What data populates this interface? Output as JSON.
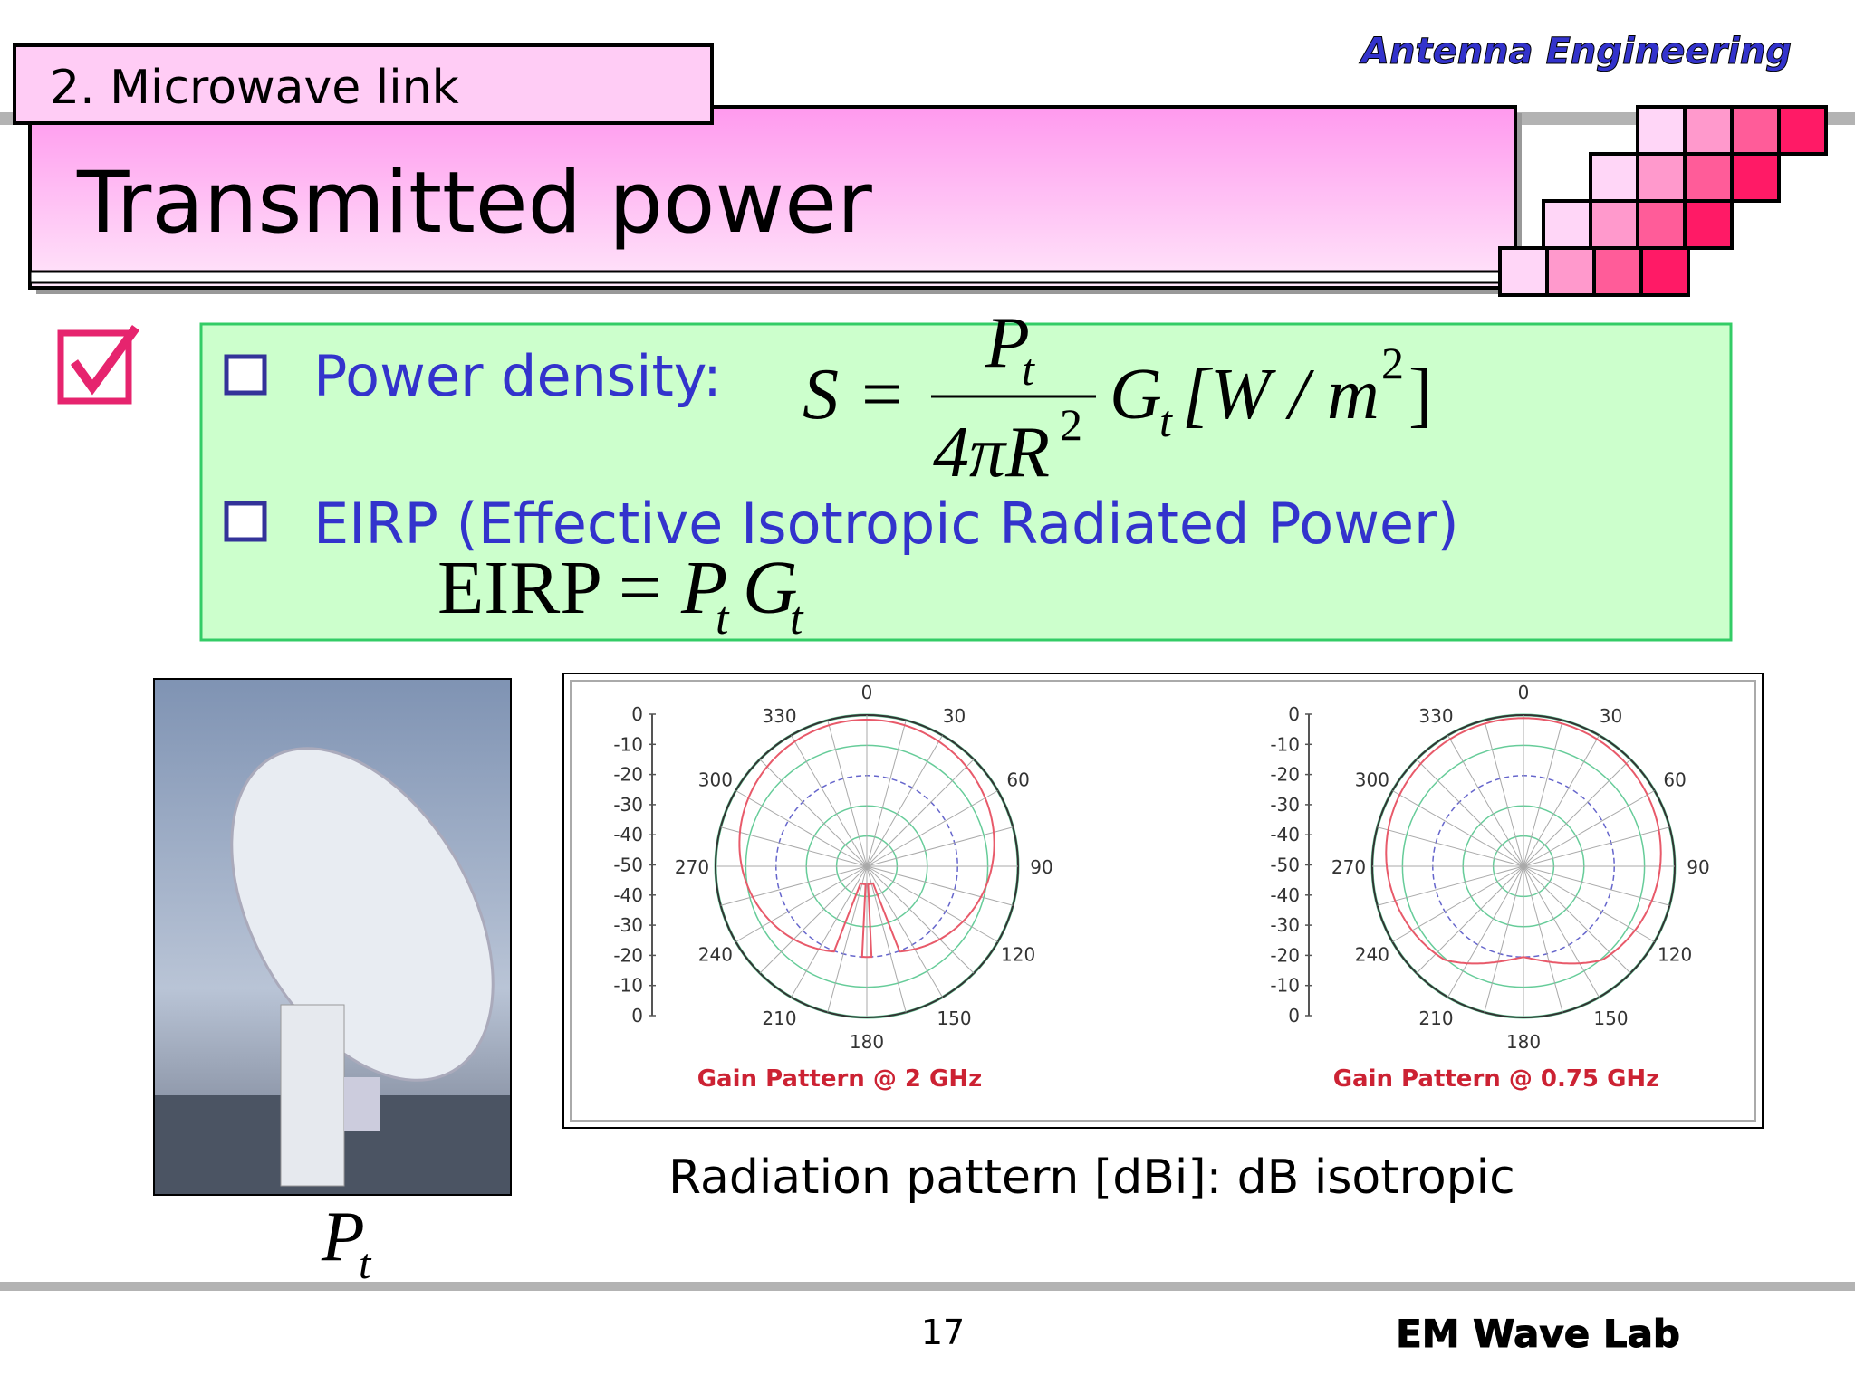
{
  "header": {
    "section": "2. Microwave link",
    "title": "Transmitted power",
    "brand": "Antenna Engineering"
  },
  "bullets": [
    {
      "text": "Power density:"
    },
    {
      "text": "EIRP (Effective Isotropic Radiated Power)"
    }
  ],
  "formula_density": {
    "lhs": "S =",
    "numerator": "P",
    "numerator_sub": "t",
    "denominator": "4πR",
    "denominator_sup": "2",
    "factor": "G",
    "factor_sub": "t",
    "unit": "[W / m",
    "unit_sup": "2",
    "unit_close": "]"
  },
  "formula_eirp": {
    "lhs": "EIRP =",
    "p": "P",
    "p_sub": "t",
    "g": "G",
    "g_sub": "t"
  },
  "photo_label": {
    "main": "P",
    "sub": "t"
  },
  "patterns": [
    {
      "caption": "Gain Pattern @ 2 GHz",
      "scale_labels": [
        0,
        -10,
        -20,
        -30,
        -40,
        -50,
        -40,
        -30,
        -20,
        -10,
        0
      ],
      "angle_labels": [
        0,
        30,
        60,
        90,
        120,
        150,
        180,
        210,
        240,
        270,
        300,
        330
      ]
    },
    {
      "caption": "Gain Pattern @ 0.75 GHz",
      "scale_labels": [
        0,
        -10,
        -20,
        -30,
        -40,
        -50,
        -40,
        -30,
        -20,
        -10,
        0
      ],
      "angle_labels": [
        0,
        30,
        60,
        90,
        120,
        150,
        180,
        210,
        240,
        270,
        300,
        330
      ]
    }
  ],
  "pattern_note": "Radiation pattern [dBi]: dB isotropic",
  "footer": {
    "page": "17",
    "lab": "EM Wave Lab"
  }
}
